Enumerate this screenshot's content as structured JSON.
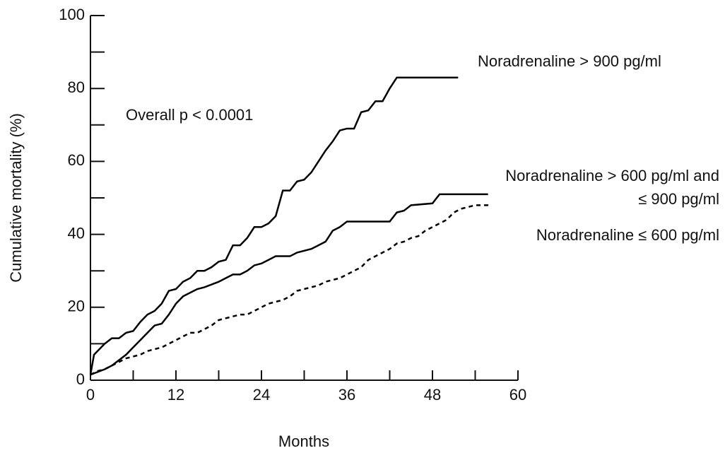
{
  "chart_data": {
    "type": "line",
    "xlabel": "Months",
    "ylabel": "Cumulative mortality (%)",
    "annotation": "Overall p < 0.0001",
    "xlim": [
      0,
      60
    ],
    "xticks": [
      0,
      12,
      24,
      36,
      48,
      60
    ],
    "xminorticks": [
      6,
      18,
      30,
      42,
      54
    ],
    "ylim": [
      0,
      100
    ],
    "yticks": [
      0,
      20,
      40,
      60,
      80,
      100
    ],
    "yminorticks": [
      10,
      30,
      50,
      70,
      90
    ],
    "series": [
      {
        "name": "Noradrenaline > 900 pg/ml",
        "color": "#000000",
        "linestyle": "solid",
        "x": [
          0,
          0.5,
          2,
          3,
          4,
          5,
          6,
          7,
          8,
          9,
          10,
          11,
          12,
          13,
          14,
          15,
          16,
          17,
          18,
          19,
          20,
          21,
          22,
          23,
          24,
          25,
          26,
          27,
          28,
          29,
          30,
          31,
          32,
          33,
          34,
          35,
          36,
          37,
          38,
          39,
          40,
          41,
          42,
          43,
          44.5,
          48,
          51.6
        ],
        "values": [
          1.5,
          7,
          10,
          11.5,
          11.5,
          13,
          13.5,
          16,
          18,
          19,
          21,
          24.5,
          25,
          27,
          28,
          30,
          30,
          31,
          32.5,
          33,
          37,
          37,
          39,
          42,
          42,
          43,
          45,
          52,
          52,
          54.5,
          55,
          57,
          60,
          63,
          65.5,
          68.5,
          69,
          69,
          73.5,
          74,
          76.5,
          76.5,
          80,
          83,
          83,
          83,
          83
        ]
      },
      {
        "name": "Noradrenaline > 600 pg/ml and\n≤ 900 pg/ml",
        "color": "#000000",
        "linestyle": "solid",
        "x": [
          0,
          2,
          3,
          4,
          5,
          6,
          7,
          8,
          9,
          10,
          11,
          12,
          13,
          14,
          15,
          16,
          18,
          19,
          20,
          21,
          22,
          23,
          24,
          25,
          26,
          28,
          29,
          30,
          31,
          32,
          33,
          34,
          35,
          36,
          40,
          42,
          43,
          44,
          45,
          48,
          49,
          55.8
        ],
        "values": [
          1.5,
          3,
          4,
          5.5,
          7,
          9,
          11,
          13,
          15,
          15.5,
          18,
          21,
          23,
          24,
          25,
          25.5,
          27,
          28,
          29,
          29,
          30,
          31.5,
          32,
          33,
          34,
          34,
          35,
          35.5,
          36,
          37,
          38,
          41,
          42,
          43.5,
          43.5,
          43.5,
          46,
          46.5,
          48,
          48.5,
          51,
          51
        ]
      },
      {
        "name": "Noradrenaline ≤ 600 pg/ml",
        "color": "#000000",
        "linestyle": "dashed",
        "x": [
          0,
          1,
          2,
          3,
          4,
          5,
          6,
          7,
          8,
          9,
          10,
          11,
          12,
          13,
          14,
          15,
          16,
          17,
          18,
          19,
          20,
          21,
          22,
          23,
          24,
          25,
          26,
          27,
          28,
          29,
          30,
          31,
          32,
          33,
          34,
          35,
          36,
          37,
          38,
          39,
          40,
          41,
          42,
          43,
          44,
          45,
          46,
          47,
          48,
          49,
          50,
          51,
          52,
          53,
          54,
          55,
          56
        ],
        "values": [
          1.5,
          2.5,
          3,
          4,
          5,
          6,
          6.5,
          7,
          8,
          8.5,
          9,
          10,
          11,
          12,
          13,
          13,
          14,
          15,
          16.5,
          17,
          17.5,
          18,
          18,
          19,
          20,
          21,
          21.5,
          22,
          23,
          24.5,
          25,
          25.5,
          26,
          27,
          27.5,
          28,
          29,
          30,
          31,
          33,
          34,
          35,
          36,
          37.5,
          38,
          39,
          39.5,
          41,
          42,
          43,
          44,
          46,
          47,
          47.5,
          48,
          48,
          48
        ]
      }
    ]
  }
}
